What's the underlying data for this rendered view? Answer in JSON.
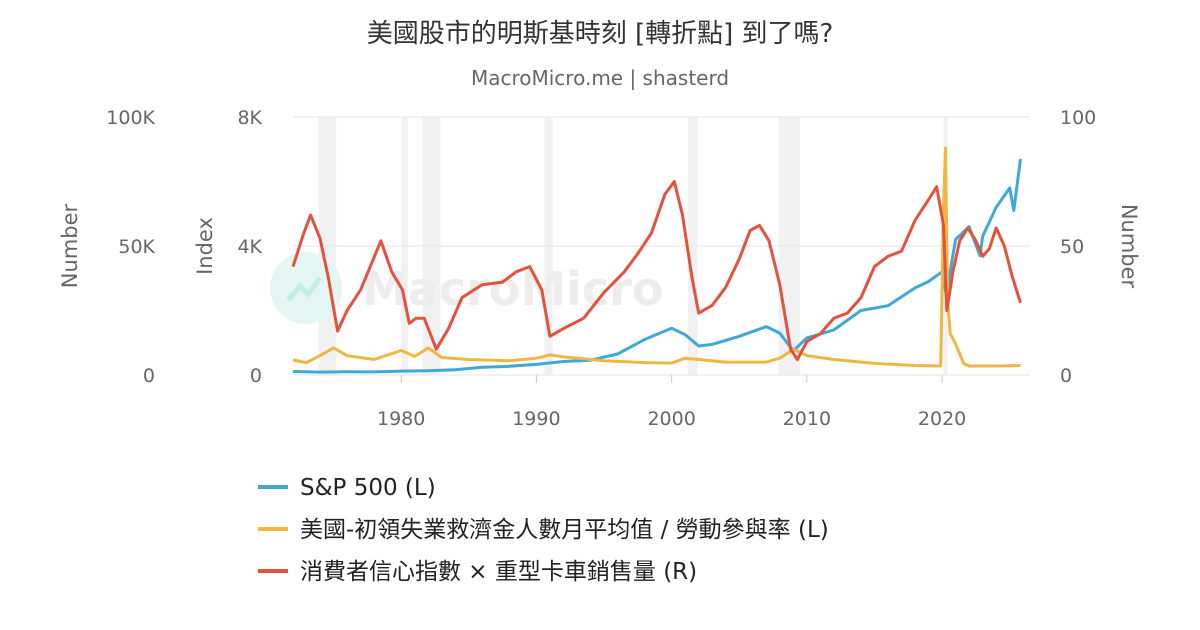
{
  "chart_data": {
    "type": "line",
    "title": "美國股市的明斯基時刻 [轉折點] 到了嗎?",
    "subtitle": "MacroMicro.me | shasterd",
    "watermark": "MacroMicro",
    "xlim": [
      1972,
      2026.5
    ],
    "x_ticks": [
      "1980",
      "1990",
      "2000",
      "2010",
      "2020"
    ],
    "x_tick_values": [
      1980,
      1990,
      2000,
      2010,
      2020
    ],
    "y_axes": [
      {
        "id": "outer-left",
        "title": "Number",
        "ylim": [
          0,
          100000
        ],
        "ticks": [
          "0",
          "50K",
          "100K"
        ],
        "tick_values": [
          0,
          50000,
          100000
        ]
      },
      {
        "id": "left",
        "title": "Index",
        "ylim": [
          0,
          8000
        ],
        "ticks": [
          "0",
          "4K",
          "8K"
        ],
        "tick_values": [
          0,
          4000,
          8000
        ]
      },
      {
        "id": "right",
        "title": "Number",
        "ylim": [
          0,
          100
        ],
        "ticks": [
          "0",
          "50",
          "100"
        ],
        "tick_values": [
          0,
          50,
          100
        ]
      }
    ],
    "grid": true,
    "legend_position": "bottom",
    "recession_bands": [
      [
        1973.9,
        1975.2
      ],
      [
        1980.0,
        1980.5
      ],
      [
        1981.6,
        1982.9
      ],
      [
        1990.6,
        1991.2
      ],
      [
        2001.2,
        2001.9
      ],
      [
        2007.9,
        2009.5
      ],
      [
        2020.1,
        2020.4
      ]
    ],
    "series": [
      {
        "name": "S&P 500 (L)",
        "axis": "left",
        "color": "#3ea9d6",
        "x": [
          1972,
          1974,
          1976,
          1978,
          1980,
          1982,
          1984,
          1986,
          1988,
          1990,
          1992,
          1994,
          1996,
          1998,
          2000,
          2001,
          2002,
          2003,
          2005,
          2007,
          2008,
          2009,
          2010,
          2012,
          2014,
          2016,
          2018,
          2019,
          2020,
          2020.3,
          2021,
          2022,
          2022.8,
          2023,
          2024,
          2025,
          2025.3,
          2025.8
        ],
        "y": [
          110,
          90,
          100,
          95,
          120,
          130,
          165,
          240,
          270,
          330,
          420,
          460,
          650,
          1100,
          1450,
          1250,
          900,
          950,
          1200,
          1500,
          1300,
          750,
          1150,
          1400,
          2000,
          2150,
          2700,
          2900,
          3200,
          2500,
          4200,
          4600,
          3700,
          4300,
          5200,
          5800,
          5100,
          6700
        ]
      },
      {
        "name": "美國-初領失業救濟金人數月平均值 / 勞動參與率 (L)",
        "axis": "outer-left",
        "color": "#f0b642",
        "x": [
          1972,
          1973,
          1974,
          1975,
          1976,
          1978,
          1980,
          1981,
          1982,
          1983,
          1985,
          1988,
          1990,
          1991,
          1992,
          1995,
          1998,
          2000,
          2001,
          2002,
          2004,
          2007,
          2008,
          2009,
          2010,
          2012,
          2015,
          2018,
          2019.9,
          2020.1,
          2020.25,
          2020.4,
          2020.6,
          2021,
          2021.6,
          2022,
          2024,
          2025.8
        ],
        "y": [
          5800,
          4800,
          7500,
          10500,
          7500,
          6000,
          9500,
          7200,
          10500,
          6800,
          6000,
          5500,
          6500,
          7800,
          7000,
          5500,
          4800,
          4600,
          6500,
          6000,
          5000,
          5000,
          6500,
          10000,
          7500,
          6000,
          4500,
          3700,
          3500,
          65000,
          88000,
          30000,
          16000,
          12000,
          4500,
          3500,
          3500,
          3700
        ]
      },
      {
        "name": "消費者信心指數 × 重型卡車銷售量 (R)",
        "axis": "right",
        "color": "#e4513d",
        "x": [
          1972,
          1972.8,
          1973.3,
          1974,
          1974.6,
          1975.3,
          1976,
          1977,
          1978.5,
          1979.3,
          1980.1,
          1980.6,
          1981.1,
          1981.7,
          1982.6,
          1983.5,
          1984.5,
          1986,
          1987.5,
          1988.5,
          1989.5,
          1990.4,
          1991,
          1992,
          1993.5,
          1995,
          1996.5,
          1997.5,
          1998.5,
          1999.5,
          2000.2,
          2000.8,
          2001.5,
          2002,
          2003,
          2004,
          2005,
          2005.8,
          2006.5,
          2007.2,
          2008,
          2008.8,
          2009.3,
          2010,
          2011,
          2012,
          2013,
          2014,
          2015,
          2016,
          2017,
          2018,
          2019,
          2019.6,
          2020.1,
          2020.35,
          2020.8,
          2021.3,
          2021.9,
          2022.5,
          2023,
          2023.5,
          2024,
          2024.6,
          2025.2,
          2025.8
        ],
        "y": [
          42,
          55,
          62,
          53,
          38,
          17,
          25,
          33,
          52,
          40,
          33,
          20,
          22,
          22,
          10,
          18,
          30,
          35,
          36,
          40,
          42,
          33,
          15,
          18,
          22,
          32,
          40,
          47,
          55,
          70,
          75,
          62,
          38,
          24,
          27,
          34,
          45,
          56,
          58,
          52,
          35,
          10,
          6,
          13,
          16,
          22,
          24,
          30,
          42,
          46,
          48,
          60,
          68,
          73,
          58,
          25,
          40,
          52,
          57,
          52,
          46,
          49,
          57,
          50,
          38,
          28
        ]
      }
    ]
  }
}
